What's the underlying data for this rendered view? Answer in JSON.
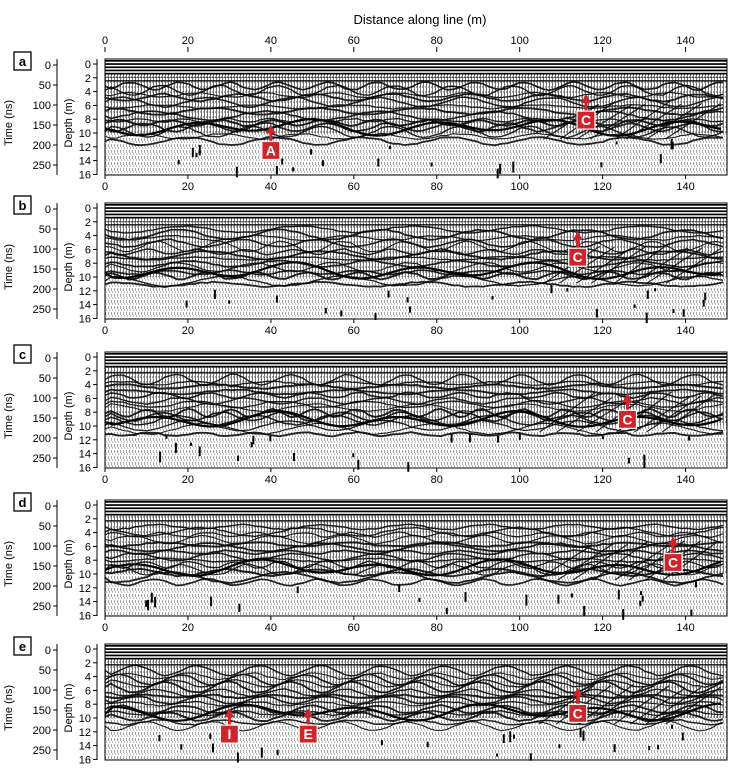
{
  "figure": {
    "top_axis_title": "Distance along line (m)",
    "time_label": "Time (ns)",
    "depth_label": "Depth (m)",
    "distance_ticks": [
      "0",
      "20",
      "40",
      "60",
      "80",
      "100",
      "120",
      "140"
    ],
    "time_ticks": [
      "0",
      "50",
      "100",
      "150",
      "200",
      "250"
    ],
    "depth_ticks": [
      "0",
      "2",
      "4",
      "6",
      "8",
      "10",
      "12",
      "14",
      "16"
    ],
    "colors": {
      "marker_fill": "#d0232a",
      "marker_text": "#ffffff",
      "trace": "#000000"
    },
    "panels": [
      {
        "id": "a",
        "markers": [
          {
            "label": "A",
            "distance_m": 40,
            "depth_m": 9.2
          },
          {
            "label": "C",
            "distance_m": 116,
            "depth_m": 4.8
          }
        ]
      },
      {
        "id": "b",
        "markers": [
          {
            "label": "C",
            "distance_m": 114,
            "depth_m": 3.8
          }
        ]
      },
      {
        "id": "c",
        "markers": [
          {
            "label": "C",
            "distance_m": 126,
            "depth_m": 5.7
          }
        ]
      },
      {
        "id": "d",
        "markers": [
          {
            "label": "C",
            "distance_m": 137,
            "depth_m": 5.0
          }
        ]
      },
      {
        "id": "e",
        "markers": [
          {
            "label": "I",
            "distance_m": 30,
            "depth_m": 9.0
          },
          {
            "label": "E",
            "distance_m": 49,
            "depth_m": 9.0
          },
          {
            "label": "C",
            "distance_m": 114,
            "depth_m": 6.0
          }
        ]
      }
    ]
  }
}
